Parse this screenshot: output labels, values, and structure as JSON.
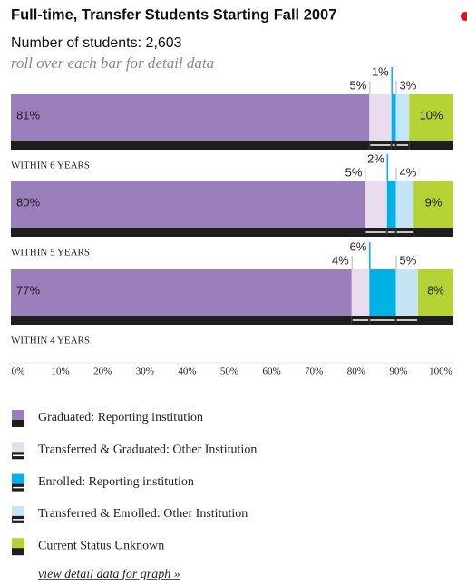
{
  "chart_data": {
    "type": "bar",
    "orientation": "horizontal",
    "stacked": true,
    "title": "Full-time, Transfer Students Starting Fall 2007",
    "subtitle": "Number of students: 2,603",
    "note": "roll over each bar for detail data",
    "categories": [
      "WITHIN 6 YEARS",
      "WITHIN 5 YEARS",
      "WITHIN 4 YEARS"
    ],
    "series": [
      {
        "name": "Graduated: Reporting institution",
        "color": "#9b7fbd",
        "values": [
          81,
          80,
          77
        ],
        "value_labels": [
          "81%",
          "80%",
          "77%"
        ]
      },
      {
        "name": "Transferred & Graduated: Other Institution",
        "color": "#e8dcee",
        "values": [
          5,
          5,
          4
        ],
        "value_labels": [
          "5%",
          "5%",
          "4%"
        ]
      },
      {
        "name": "Enrolled: Reporting institution",
        "color": "#00b1e6",
        "values": [
          1,
          2,
          6
        ],
        "value_labels": [
          "1%",
          "2%",
          "6%"
        ]
      },
      {
        "name": "Transferred & Enrolled: Other Institution",
        "color": "#c5e5f5",
        "values": [
          3,
          4,
          5
        ],
        "value_labels": [
          "3%",
          "4%",
          "5%"
        ]
      },
      {
        "name": "Current Status Unknown",
        "color": "#b5d334",
        "values": [
          10,
          9,
          8
        ],
        "value_labels": [
          "10%",
          "9%",
          "8%"
        ]
      }
    ],
    "xlim": [
      0,
      100
    ],
    "xticks": [
      {
        "value": 0,
        "label": "0%"
      },
      {
        "value": 10,
        "label": "10%"
      },
      {
        "value": 20,
        "label": "20%"
      },
      {
        "value": 30,
        "label": "30%"
      },
      {
        "value": 40,
        "label": "40%"
      },
      {
        "value": 50,
        "label": "50%"
      },
      {
        "value": 60,
        "label": "60%"
      },
      {
        "value": 70,
        "label": "70%"
      },
      {
        "value": 80,
        "label": "80%"
      },
      {
        "value": 90,
        "label": "90%"
      },
      {
        "value": 100,
        "label": "100%"
      }
    ]
  },
  "link": "view detail data for graph »"
}
